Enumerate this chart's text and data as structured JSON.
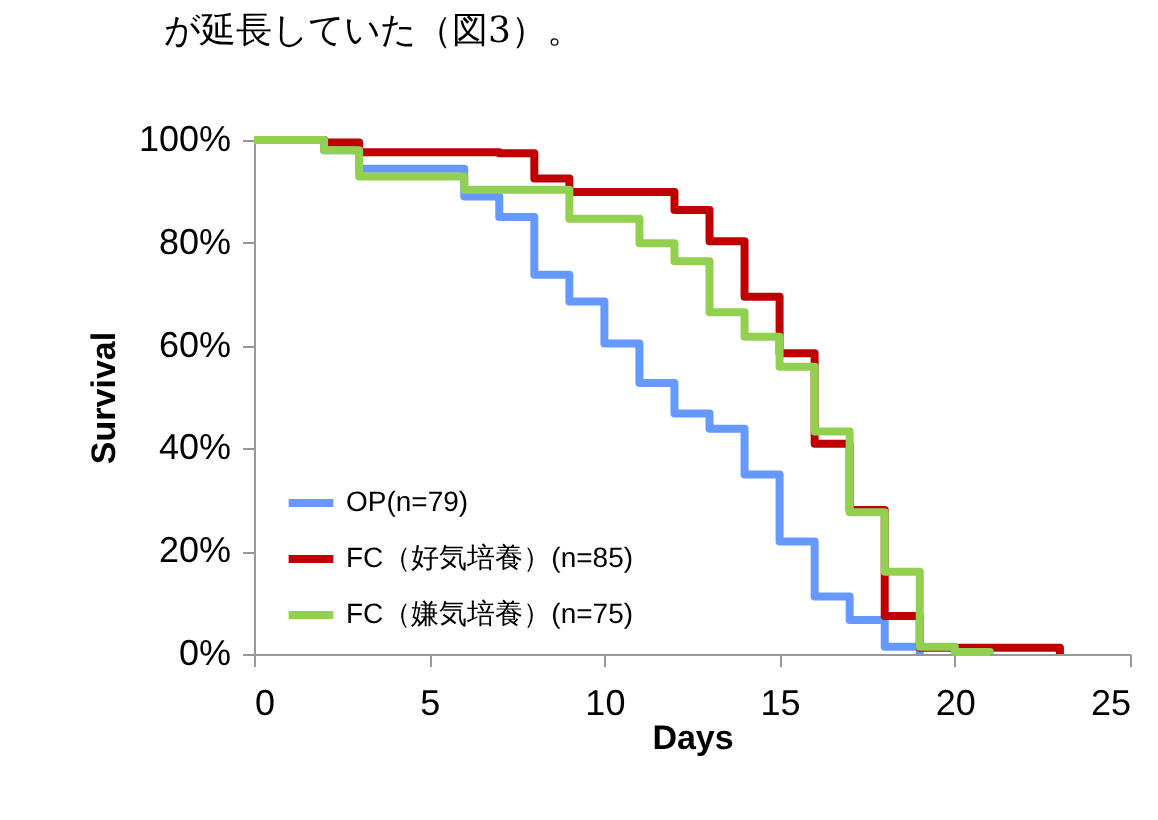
{
  "chart_data": {
    "type": "step",
    "xlabel": "Days",
    "ylabel": "Survival",
    "annotations": [
      "が延長していた（図3）。"
    ],
    "xlim": [
      0,
      25
    ],
    "xticks": [
      0,
      5,
      10,
      15,
      20,
      25
    ],
    "ylim": [
      0,
      100
    ],
    "yticks": [
      {
        "value": 0,
        "label": "0%"
      },
      {
        "value": 20,
        "label": "20%"
      },
      {
        "value": 40,
        "label": "40%"
      },
      {
        "value": 60,
        "label": "60%"
      },
      {
        "value": 80,
        "label": "80%"
      },
      {
        "value": 100,
        "label": "100%"
      }
    ],
    "grid": false,
    "legend": "bottom left",
    "marker": "none",
    "line_style": "solid",
    "series": [
      {
        "name": "OP(n=79)",
        "color": "#6699ff",
        "x": [
          0,
          2,
          3,
          6,
          7,
          8,
          9,
          10,
          11,
          12,
          13,
          14,
          15,
          16,
          17,
          18,
          19
        ],
        "values": [
          100,
          98,
          94.4,
          89,
          85,
          73.8,
          68.6,
          60.4,
          52.7,
          46.8,
          43.8,
          34.9,
          21.9,
          11.2,
          6.6,
          1.4,
          0
        ]
      },
      {
        "name": "FC（好気培養）(n=85)",
        "color": "#c00000",
        "x": [
          0,
          2,
          3,
          7,
          8,
          9,
          12,
          13,
          14,
          15,
          16,
          17,
          18,
          19,
          23
        ],
        "values": [
          100,
          99.5,
          97.6,
          97.4,
          92.5,
          89.9,
          86.4,
          80.3,
          69.5,
          58.5,
          40.9,
          28,
          7.4,
          1.2,
          0
        ]
      },
      {
        "name": "FC（嫌気培養）(n=75)",
        "color": "#92d050",
        "x": [
          0,
          2,
          3,
          6,
          9,
          11,
          12,
          13,
          14,
          15,
          16,
          17,
          18,
          19,
          20,
          21
        ],
        "values": [
          100,
          98,
          92.9,
          90.3,
          84.7,
          79.9,
          76.4,
          66.5,
          61.7,
          55.9,
          43.3,
          27.6,
          16,
          1.4,
          0.4,
          0
        ]
      }
    ]
  }
}
